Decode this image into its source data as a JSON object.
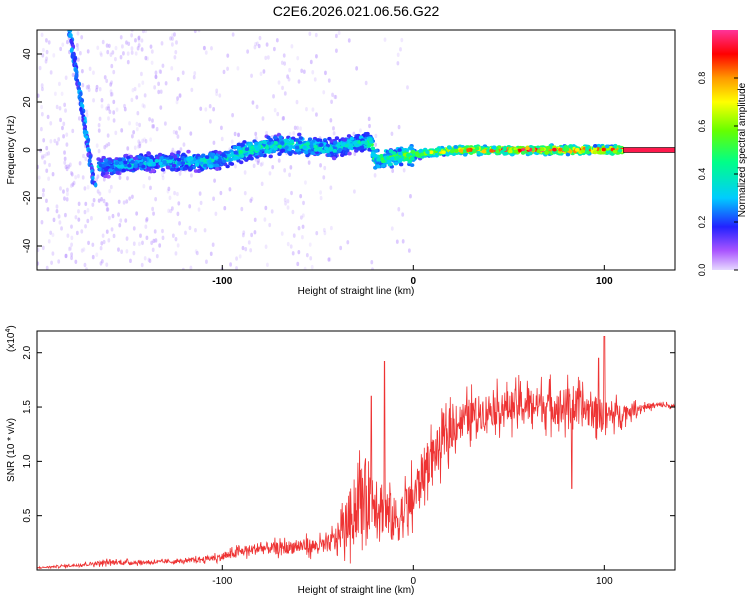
{
  "title": "C2E6.2026.021.06.56.G22",
  "chart_data": [
    {
      "type": "heatmap",
      "title": "",
      "xlabel": "Height of straight line (km)",
      "ylabel": "Frequency (Hz)",
      "xlim": [
        -197,
        137
      ],
      "ylim": [
        -50,
        50
      ],
      "xticks": [
        -100,
        0,
        100
      ],
      "yticks": [
        -40,
        -20,
        0,
        20,
        40
      ],
      "xtick_labels": [
        "-100",
        "0",
        "100"
      ],
      "ytick_labels": [
        "-40",
        "-20",
        "0",
        "20",
        "40"
      ],
      "colorbar": {
        "label": "Normalized spectral amplitude",
        "range": [
          0,
          1
        ],
        "ticks": [
          0.0,
          0.2,
          0.4,
          0.6,
          0.8
        ],
        "tick_labels": [
          "0.0",
          "0.2",
          "0.4",
          "0.6",
          "0.8"
        ]
      },
      "ridge": {
        "x": [
          -165,
          -150,
          -130,
          -110,
          -100,
          -90,
          -80,
          -70,
          -60,
          -50,
          -40,
          -30,
          -22,
          -20,
          -10,
          0,
          10,
          20,
          40,
          60,
          80,
          100,
          110
        ],
        "freq": [
          -7,
          -6,
          -5,
          -5,
          -4,
          -1,
          1,
          2,
          2,
          1,
          1,
          3,
          3,
          -4,
          -3,
          -2,
          -1,
          0,
          0,
          0,
          0,
          0,
          0
        ],
        "amplitude": [
          0.35,
          0.35,
          0.35,
          0.4,
          0.4,
          0.45,
          0.45,
          0.45,
          0.45,
          0.4,
          0.4,
          0.4,
          0.45,
          0.5,
          0.55,
          0.6,
          0.7,
          0.8,
          0.85,
          0.9,
          0.9,
          0.85,
          0.8
        ]
      },
      "line_segment": {
        "x": [
          110,
          137
        ],
        "freq": [
          0,
          0
        ],
        "amplitude": 0.95
      },
      "streak": {
        "x": [
          -180,
          -167
        ],
        "freq": [
          50,
          -15
        ]
      },
      "colors": {
        "low": "#cc99ff",
        "mid": "#00ccff",
        "high": "#ff0000"
      }
    },
    {
      "type": "line",
      "title": "",
      "xlabel": "Height of straight line (km)",
      "ylabel": "SNR (10 * v/v)",
      "multiplier_label": "(x10",
      "multiplier_exponent": "4",
      "multiplier_close": ")",
      "xlim": [
        -197,
        137
      ],
      "ylim": [
        0.0,
        2.2
      ],
      "xticks": [
        -100,
        0,
        100
      ],
      "yticks": [
        0.5,
        1.0,
        1.5,
        2.0
      ],
      "xtick_labels": [
        "-100",
        "0",
        "100"
      ],
      "ytick_labels": [
        "0.5",
        "1.0",
        "1.5",
        "2.0"
      ],
      "series": [
        {
          "name": "SNR",
          "color": "#ee3333",
          "x": [
            -197,
            -180,
            -160,
            -140,
            -120,
            -100,
            -90,
            -80,
            -70,
            -60,
            -50,
            -45,
            -40,
            -35,
            -30,
            -25,
            -20,
            -15,
            -10,
            -5,
            0,
            5,
            10,
            15,
            20,
            25,
            30,
            40,
            50,
            60,
            70,
            80,
            90,
            100,
            110,
            120,
            130,
            137
          ],
          "y": [
            0.02,
            0.04,
            0.07,
            0.07,
            0.08,
            0.12,
            0.17,
            0.2,
            0.2,
            0.22,
            0.22,
            0.23,
            0.3,
            0.42,
            0.6,
            0.7,
            0.68,
            0.55,
            0.45,
            0.52,
            0.65,
            0.9,
            1.05,
            1.15,
            1.3,
            1.38,
            1.42,
            1.48,
            1.5,
            1.52,
            1.52,
            1.5,
            1.48,
            1.42,
            1.45,
            1.5,
            1.52,
            1.5
          ],
          "noise_amplitude": [
            0.01,
            0.02,
            0.04,
            0.03,
            0.03,
            0.06,
            0.08,
            0.1,
            0.1,
            0.12,
            0.12,
            0.14,
            0.2,
            0.4,
            0.55,
            0.6,
            0.55,
            0.45,
            0.4,
            0.4,
            0.4,
            0.38,
            0.35,
            0.35,
            0.32,
            0.3,
            0.3,
            0.28,
            0.28,
            0.3,
            0.3,
            0.32,
            0.3,
            0.25,
            0.15,
            0.06,
            0.04,
            0.04
          ],
          "peaks": [
            {
              "x": -15,
              "y": 1.92
            },
            {
              "x": -22,
              "y": 1.6
            },
            {
              "x": 100,
              "y": 2.15
            },
            {
              "x": 97,
              "y": 1.95
            },
            {
              "x": 83,
              "y": 0.75
            }
          ]
        }
      ]
    }
  ]
}
